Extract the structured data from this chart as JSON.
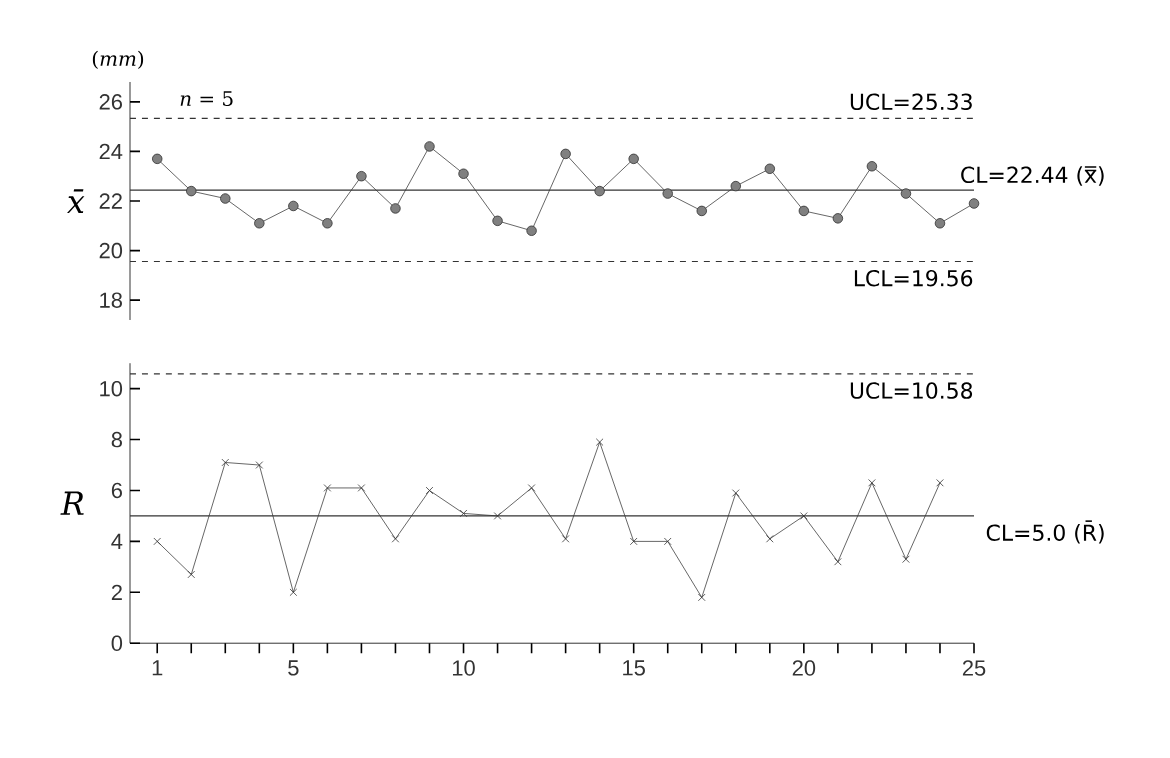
{
  "chart_data": [
    {
      "type": "line",
      "ylabel": "*x̄*",
      "x": [
        1,
        2,
        3,
        4,
        5,
        6,
        7,
        8,
        9,
        10,
        11,
        12,
        13,
        14,
        15,
        16,
        17,
        18,
        19,
        20,
        21,
        22,
        23,
        24,
        25
      ],
      "values": [
        23.7,
        22.4,
        22.1,
        21.1,
        21.8,
        21.1,
        23.0,
        21.7,
        24.2,
        23.1,
        21.2,
        20.8,
        23.9,
        22.4,
        23.7,
        22.3,
        21.6,
        22.6,
        23.3,
        21.6,
        21.3,
        23.4,
        22.3,
        21.1,
        21.9
      ],
      "color": "#404040",
      "marker": "circle",
      "xlim": [
        0.2,
        25
      ],
      "ylim": [
        17.2,
        26.8
      ],
      "yticks": [
        18,
        20,
        22,
        24,
        26
      ],
      "tick_labels": "y",
      "annotations": [
        "(*mm*)",
        "*n* = 5"
      ],
      "ref_lines": [
        {
          "axis": "y",
          "value": 25.33,
          "label": "UCL=25.33",
          "line_style": "dashed"
        },
        {
          "axis": "y",
          "value": 22.44,
          "label": "CL=22.44 (x̿)",
          "line_style": "solid"
        },
        {
          "axis": "y",
          "value": 19.56,
          "label": "LCL=19.56",
          "line_style": "dashed"
        }
      ]
    },
    {
      "type": "line",
      "ylabel": "*R*",
      "x": [
        1,
        2,
        3,
        4,
        5,
        6,
        7,
        8,
        9,
        10,
        11,
        12,
        13,
        14,
        15,
        16,
        17,
        18,
        19,
        20,
        21,
        22,
        23,
        24
      ],
      "values": [
        4.0,
        2.7,
        7.1,
        7.0,
        2.0,
        6.1,
        6.1,
        4.1,
        6.0,
        5.1,
        5.0,
        6.1,
        4.1,
        7.9,
        4.0,
        4.0,
        1.8,
        5.9,
        4.1,
        5.0,
        3.2,
        6.3,
        3.3,
        6.3
      ],
      "color": "#404040",
      "marker": "cross",
      "xlim": [
        0.2,
        25
      ],
      "ylim": [
        0,
        11
      ],
      "yticks": [
        0,
        2,
        4,
        6,
        8,
        10
      ],
      "xticks": [
        1,
        {
          "value": 2,
          "label": null
        },
        {
          "value": 3,
          "label": null
        },
        {
          "value": 4,
          "label": null
        },
        5,
        {
          "value": 6,
          "label": null
        },
        {
          "value": 7,
          "label": null
        },
        {
          "value": 8,
          "label": null
        },
        {
          "value": 9,
          "label": null
        },
        10,
        {
          "value": 11,
          "label": null
        },
        {
          "value": 12,
          "label": null
        },
        {
          "value": 13,
          "label": null
        },
        {
          "value": 14,
          "label": null
        },
        15,
        {
          "value": 16,
          "label": null
        },
        {
          "value": 17,
          "label": null
        },
        {
          "value": 18,
          "label": null
        },
        {
          "value": 19,
          "label": null
        },
        20,
        {
          "value": 21,
          "label": null
        },
        {
          "value": 22,
          "label": null
        },
        {
          "value": 23,
          "label": null
        },
        {
          "value": 24,
          "label": null
        },
        25
      ],
      "ref_lines": [
        {
          "axis": "y",
          "value": 10.58,
          "label": "UCL=10.58",
          "line_style": "dashed"
        },
        {
          "axis": "y",
          "value": 5.0,
          "label": "CL=5.0 (R̄)",
          "line_style": "solid"
        }
      ]
    }
  ]
}
